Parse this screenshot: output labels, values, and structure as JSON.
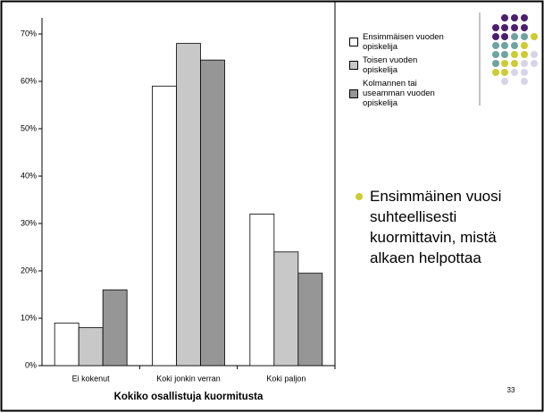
{
  "chart_data": {
    "type": "bar",
    "x_label": "Kokiko osallistuja kuormitusta",
    "categories": [
      "Ei kokenut",
      "Koki jonkin verran",
      "Koki paljon"
    ],
    "series": [
      {
        "name": "Ensimmäisen vuoden opiskelija",
        "color": "#ffffff",
        "values": [
          9,
          59,
          32
        ]
      },
      {
        "name": "Toisen vuoden opiskelija",
        "color": "#c8c8c8",
        "values": [
          8,
          68,
          24
        ]
      },
      {
        "name": "Kolmannen tai useamman vuoden opiskelija",
        "color": "#969696",
        "values": [
          16,
          64.5,
          19.5
        ]
      }
    ],
    "ylim": [
      0,
      70
    ],
    "yticks": [
      {
        "value": 0,
        "label": "0%"
      },
      {
        "value": 10,
        "label": "10%"
      },
      {
        "value": 20,
        "label": "20%"
      },
      {
        "value": 30,
        "label": "30%"
      },
      {
        "value": 40,
        "label": "40%"
      },
      {
        "value": 50,
        "label": "50%"
      },
      {
        "value": 60,
        "label": "60%"
      },
      {
        "value": 70,
        "label": "70%"
      }
    ],
    "bullet": "Ensimmäinen vuosi suhteellisesti kuormittavin, mistä alkaen helpottaa",
    "page_number": "33"
  }
}
